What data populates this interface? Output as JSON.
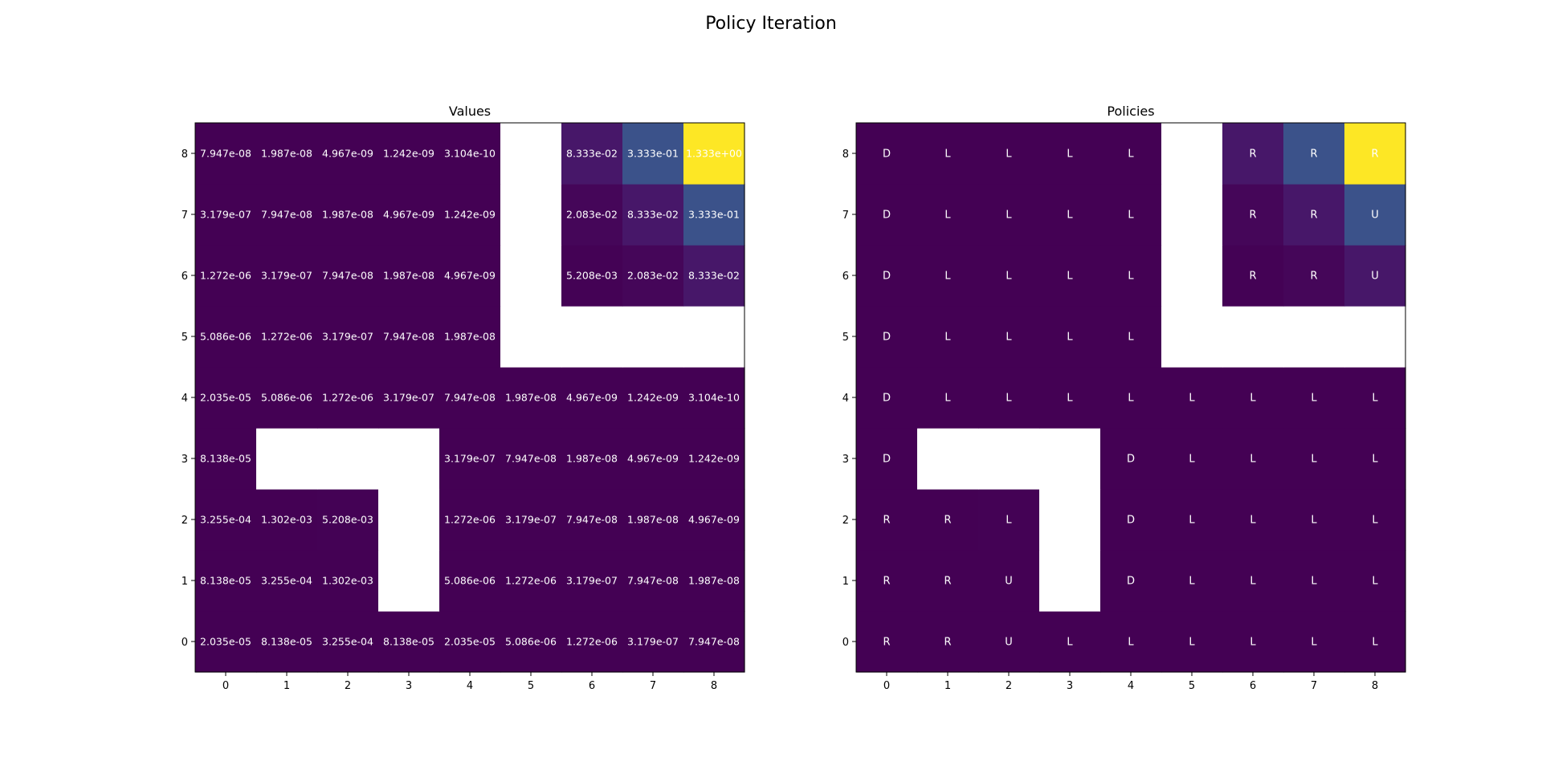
{
  "figure": {
    "title": "Policy Iteration"
  },
  "chart_data": [
    {
      "type": "heatmap",
      "title": "Values",
      "x": [
        0,
        1,
        2,
        3,
        4,
        5,
        6,
        7,
        8
      ],
      "y": [
        0,
        1,
        2,
        3,
        4,
        5,
        6,
        7,
        8
      ],
      "colormap": "viridis",
      "vmin": 0,
      "vmax": 1.333,
      "walls": [
        [
          1,
          3
        ],
        [
          2,
          3
        ],
        [
          3,
          3
        ],
        [
          3,
          2
        ],
        [
          3,
          1
        ],
        [
          5,
          5
        ],
        [
          6,
          5
        ],
        [
          7,
          5
        ],
        [
          8,
          5
        ],
        [
          5,
          6
        ],
        [
          5,
          7
        ],
        [
          5,
          8
        ]
      ],
      "values": [
        [
          2.035e-05,
          8.138e-05,
          0.0003255,
          8.138e-05,
          2.035e-05,
          5.086e-06,
          1.272e-06,
          3.179e-07,
          7.947e-08
        ],
        [
          8.138e-05,
          0.0003255,
          0.001302,
          null,
          5.086e-06,
          1.272e-06,
          3.179e-07,
          7.947e-08,
          1.987e-08
        ],
        [
          0.0003255,
          0.001302,
          0.005208,
          null,
          1.272e-06,
          3.179e-07,
          7.947e-08,
          1.987e-08,
          4.967e-09
        ],
        [
          8.138e-05,
          null,
          null,
          null,
          3.179e-07,
          7.947e-08,
          1.987e-08,
          4.967e-09,
          1.242e-09
        ],
        [
          2.035e-05,
          5.086e-06,
          1.272e-06,
          3.179e-07,
          7.947e-08,
          1.987e-08,
          4.967e-09,
          1.242e-09,
          3.104e-10
        ],
        [
          5.086e-06,
          1.272e-06,
          3.179e-07,
          7.947e-08,
          1.987e-08,
          null,
          null,
          null,
          null
        ],
        [
          1.272e-06,
          3.179e-07,
          7.947e-08,
          1.987e-08,
          4.967e-09,
          null,
          0.005208,
          0.02083,
          0.08333
        ],
        [
          3.179e-07,
          7.947e-08,
          1.987e-08,
          4.967e-09,
          1.242e-09,
          null,
          0.02083,
          0.08333,
          0.3333
        ],
        [
          7.947e-08,
          1.987e-08,
          4.967e-09,
          1.242e-09,
          3.104e-10,
          null,
          0.08333,
          0.3333,
          1.333
        ]
      ],
      "labels": [
        [
          "2.035e-05",
          "8.138e-05",
          "3.255e-04",
          "8.138e-05",
          "2.035e-05",
          "5.086e-06",
          "1.272e-06",
          "3.179e-07",
          "7.947e-08"
        ],
        [
          "8.138e-05",
          "3.255e-04",
          "1.302e-03",
          "",
          "5.086e-06",
          "1.272e-06",
          "3.179e-07",
          "7.947e-08",
          "1.987e-08"
        ],
        [
          "3.255e-04",
          "1.302e-03",
          "5.208e-03",
          "",
          "1.272e-06",
          "3.179e-07",
          "7.947e-08",
          "1.987e-08",
          "4.967e-09"
        ],
        [
          "8.138e-05",
          "",
          "",
          "",
          "3.179e-07",
          "7.947e-08",
          "1.987e-08",
          "4.967e-09",
          "1.242e-09"
        ],
        [
          "2.035e-05",
          "5.086e-06",
          "1.272e-06",
          "3.179e-07",
          "7.947e-08",
          "1.987e-08",
          "4.967e-09",
          "1.242e-09",
          "3.104e-10"
        ],
        [
          "5.086e-06",
          "1.272e-06",
          "3.179e-07",
          "7.947e-08",
          "1.987e-08",
          "",
          "",
          "",
          ""
        ],
        [
          "1.272e-06",
          "3.179e-07",
          "7.947e-08",
          "1.987e-08",
          "4.967e-09",
          "",
          "5.208e-03",
          "2.083e-02",
          "8.333e-02"
        ],
        [
          "3.179e-07",
          "7.947e-08",
          "1.987e-08",
          "4.967e-09",
          "1.242e-09",
          "",
          "2.083e-02",
          "8.333e-02",
          "3.333e-01"
        ],
        [
          "7.947e-08",
          "1.987e-08",
          "4.967e-09",
          "1.242e-09",
          "3.104e-10",
          "",
          "8.333e-02",
          "3.333e-01",
          "1.333e+00"
        ]
      ]
    },
    {
      "type": "heatmap",
      "title": "Policies",
      "x": [
        0,
        1,
        2,
        3,
        4,
        5,
        6,
        7,
        8
      ],
      "y": [
        0,
        1,
        2,
        3,
        4,
        5,
        6,
        7,
        8
      ],
      "colormap": "viridis",
      "color_source": "Values",
      "labels": [
        [
          "R",
          "R",
          "U",
          "L",
          "L",
          "L",
          "L",
          "L",
          "L"
        ],
        [
          "R",
          "R",
          "U",
          "",
          "D",
          "L",
          "L",
          "L",
          "L"
        ],
        [
          "R",
          "R",
          "L",
          "",
          "D",
          "L",
          "L",
          "L",
          "L"
        ],
        [
          "D",
          "",
          "",
          "",
          "D",
          "L",
          "L",
          "L",
          "L"
        ],
        [
          "D",
          "L",
          "L",
          "L",
          "L",
          "L",
          "L",
          "L",
          "L"
        ],
        [
          "D",
          "L",
          "L",
          "L",
          "L",
          "",
          "",
          "",
          ""
        ],
        [
          "D",
          "L",
          "L",
          "L",
          "L",
          "",
          "R",
          "R",
          "U"
        ],
        [
          "D",
          "L",
          "L",
          "L",
          "L",
          "",
          "R",
          "R",
          "U"
        ],
        [
          "D",
          "L",
          "L",
          "L",
          "L",
          "",
          "R",
          "R",
          "R"
        ]
      ]
    }
  ]
}
